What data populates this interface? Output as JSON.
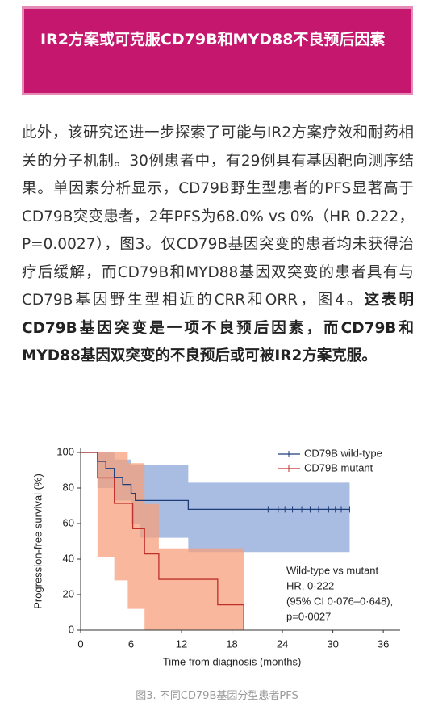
{
  "header": {
    "title": "IR2方案或可克服CD79B和MYD88不良预后因素"
  },
  "body": {
    "text": "此外，该研究还进一步探索了可能与IR2方案疗效和耐药相关的分子机制。30例患者中，有29例具有基因靶向测序结果。单因素分析显示，CD79B野生型患者的PFS显著高于CD79B突变患者，2年PFS为68.0% vs 0%（HR 0.222，P=0.0027），图3。仅CD79B基因突变的患者均未获得治疗后缓解，而CD79B和MYD88基因双突变的患者具有与CD79B基因野生型相近的CRR和ORR，图4。",
    "bold": "这表明CD79B基因突变是一项不良预后因素，而CD79B和MYD88基因双突变的不良预后或可被IR2方案克服。"
  },
  "figure": {
    "caption": "图3. 不同CD79B基因分型患者PFS",
    "chart": {
      "type": "step",
      "xlabel": "Time from diagnosis (months)",
      "ylabel": "Progression-free survival (%)",
      "xlim": [
        0,
        38
      ],
      "ylim": [
        0,
        100
      ],
      "xticks": [
        0,
        6,
        12,
        18,
        24,
        30,
        36
      ],
      "yticks": [
        0,
        20,
        40,
        60,
        80,
        100
      ],
      "annotation": [
        "Wild-type vs mutant",
        "HR, 0·222",
        "(95% CI 0·076–0·648),",
        "p=0·0027"
      ],
      "series": [
        {
          "name": "CD79B wild-type",
          "color": "#1d3c78",
          "band_color": "#6f8fcf",
          "x": [
            0,
            2,
            2,
            3,
            3,
            4,
            4,
            5,
            5,
            6,
            6,
            6.5,
            6.5,
            12.8,
            12.8,
            32
          ],
          "values": [
            100,
            100,
            95,
            95,
            91,
            91,
            86,
            86,
            82,
            82,
            77,
            77,
            73,
            73,
            68,
            68
          ],
          "band": {
            "x": [
              0,
              2,
              2,
              4,
              4,
              6,
              6,
              7,
              7,
              12.8,
              12.8,
              32
            ],
            "upper": [
              100,
              100,
              100,
              100,
              96,
              96,
              93,
              93,
              93,
              93,
              83,
              83
            ],
            "lower": [
              100,
              100,
              80,
              80,
              73,
              73,
              60,
              60,
              52,
              52,
              44,
              44
            ]
          },
          "censored": [
            22.3,
            23.5,
            24.3,
            25.2,
            26.3,
            27.3,
            28.3,
            29.5,
            30.3,
            31,
            32
          ]
        },
        {
          "name": "CD79B mutant",
          "color": "#c0302a",
          "band_color": "#f7a07c",
          "x": [
            0,
            2,
            2,
            4,
            4,
            6.2,
            6.2,
            7.6,
            7.6,
            9.3,
            9.3,
            16.3,
            16.3,
            19.4,
            19.4
          ],
          "values": [
            100,
            100,
            85.7,
            85.7,
            71.4,
            71.4,
            57.1,
            57.1,
            42.9,
            42.9,
            28.6,
            28.6,
            14.3,
            14.3,
            0
          ],
          "band": {
            "x": [
              0,
              2,
              2,
              4,
              4,
              5.6,
              5.6,
              7.6,
              7.6,
              9.3,
              9.3,
              19.4,
              19.4
            ],
            "upper": [
              100,
              100,
              100,
              100,
              100,
              100,
              94,
              94,
              71,
              71,
              46,
              46,
              0
            ],
            "lower": [
              100,
              100,
              41,
              41,
              28,
              28,
              12,
              12,
              0,
              0,
              0,
              0,
              0
            ]
          },
          "censored": []
        }
      ]
    }
  }
}
